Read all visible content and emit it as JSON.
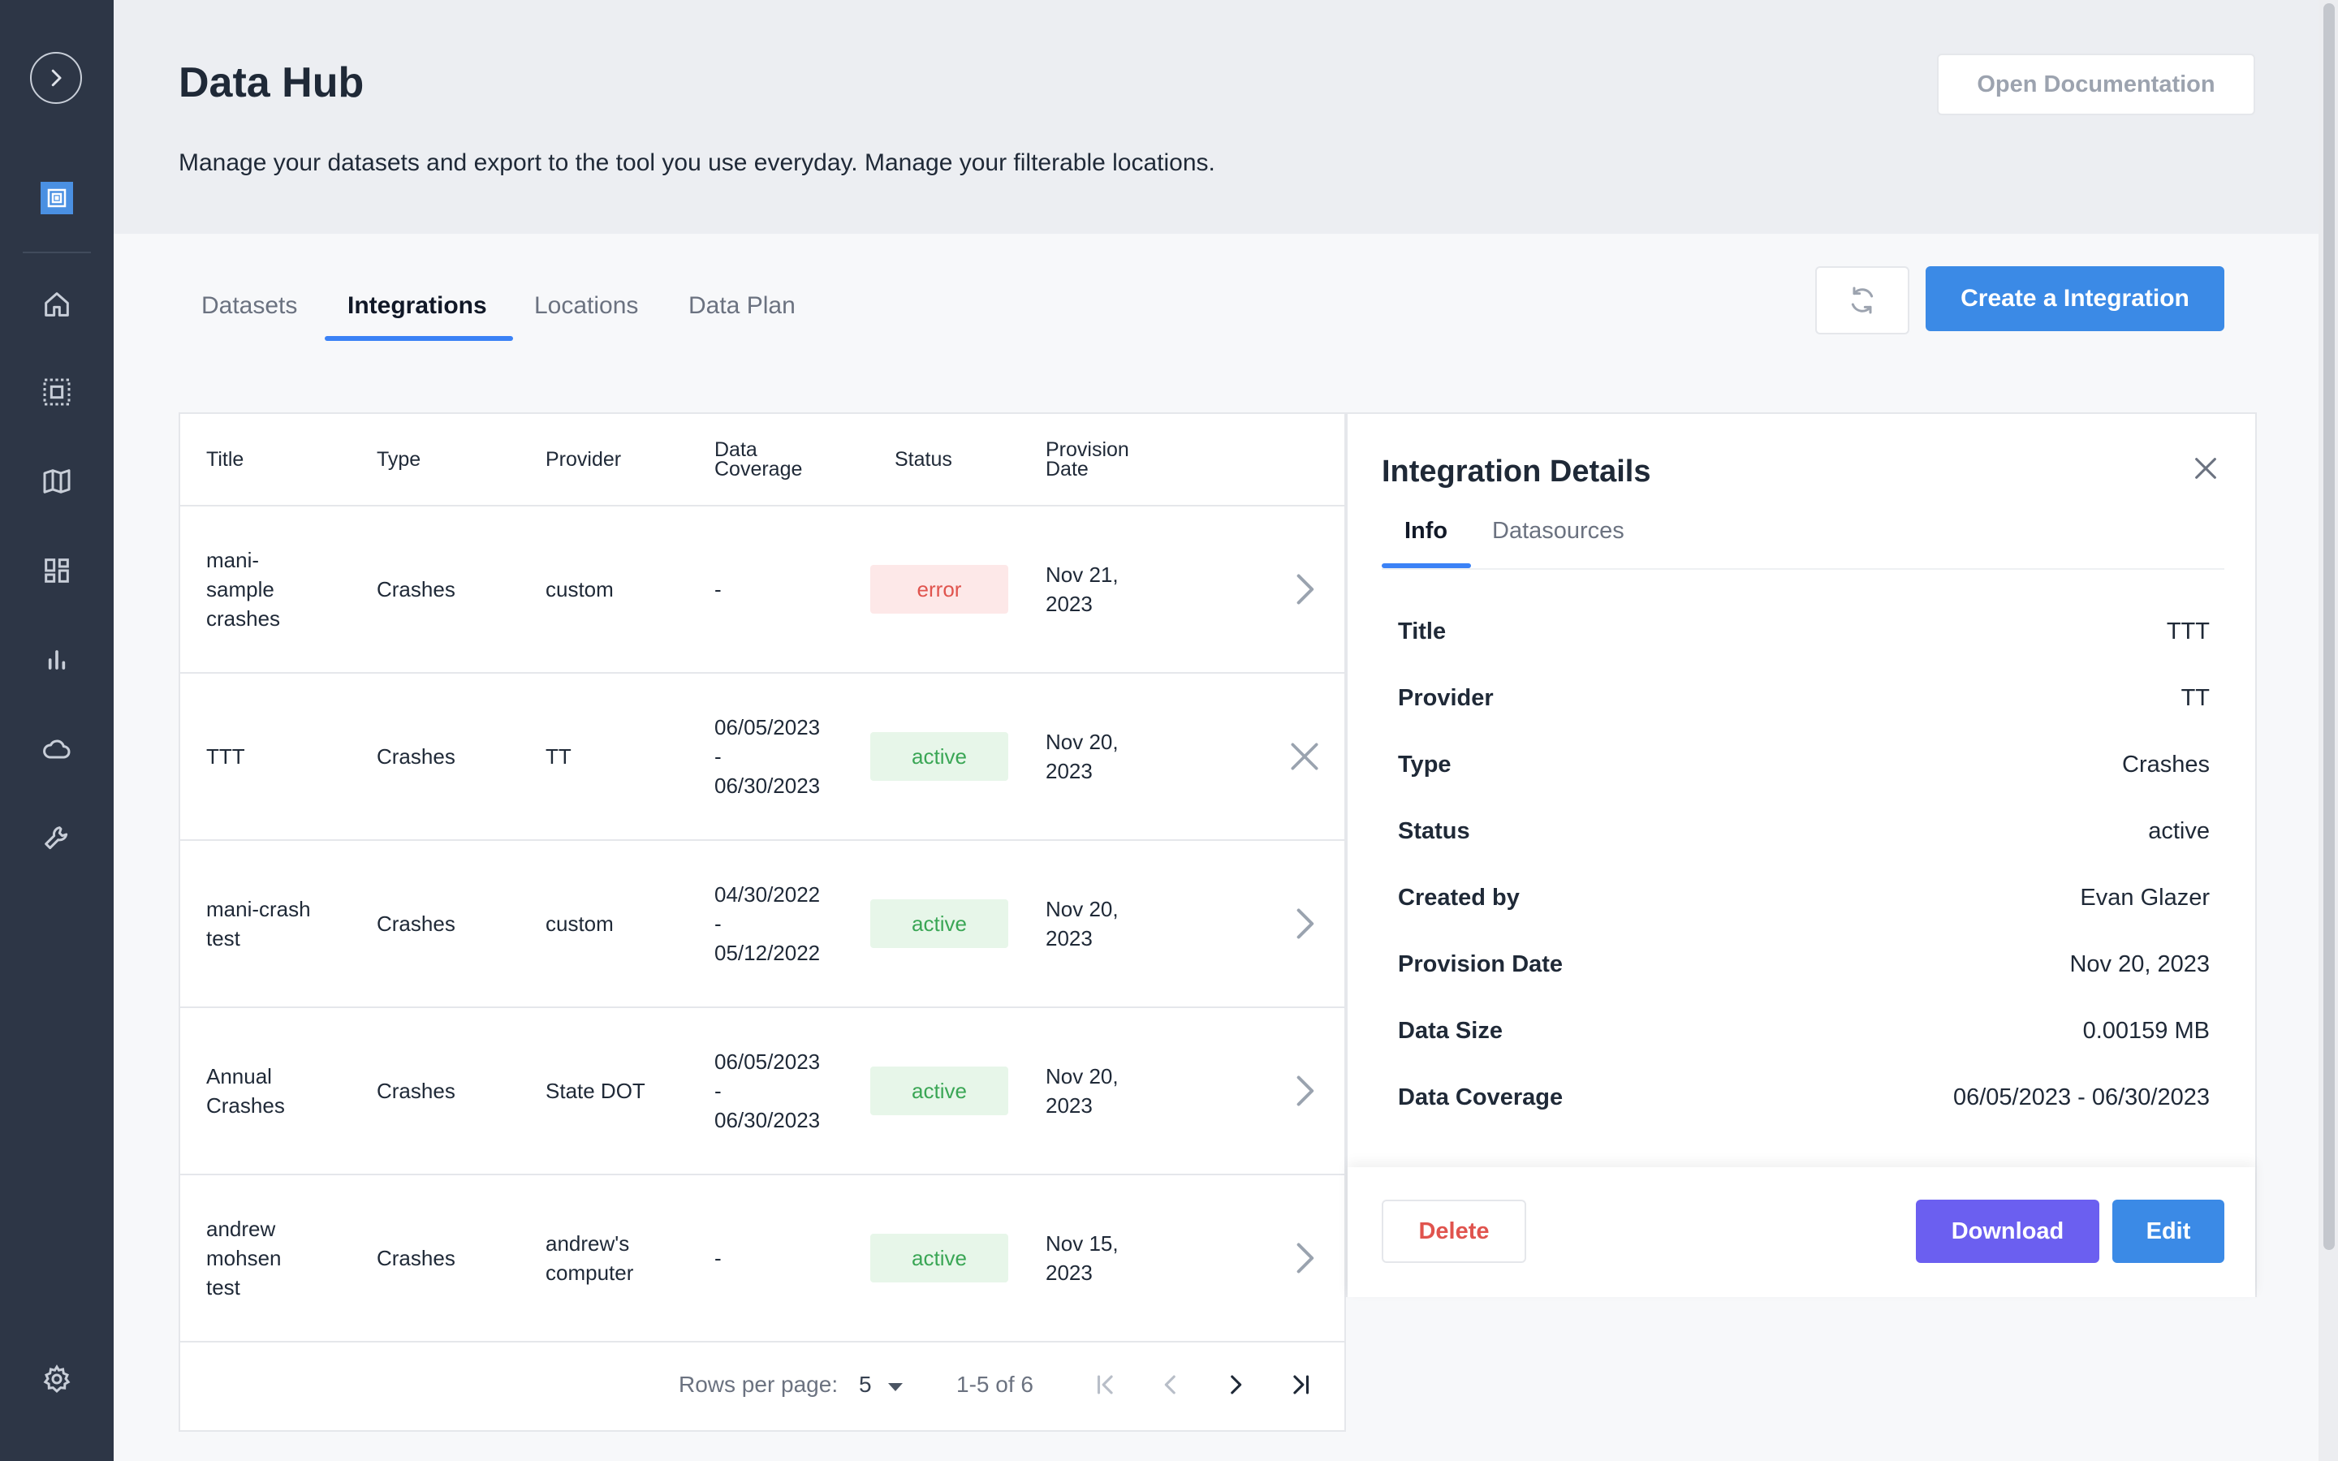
{
  "app": {
    "title": "Data Hub",
    "description": "Manage your datasets and export to the tool you use everyday. Manage your filterable locations.",
    "open_docs_label": "Open Documentation"
  },
  "sidebar": {
    "icons": [
      "chevron-right-icon",
      "logo-icon",
      "home-icon",
      "grid-select-icon",
      "map-icon",
      "dashboard-icon",
      "bar-chart-icon",
      "cloud-icon",
      "wrench-icon",
      "gear-icon"
    ]
  },
  "tabs": [
    {
      "label": "Datasets",
      "active": false
    },
    {
      "label": "Integrations",
      "active": true
    },
    {
      "label": "Locations",
      "active": false
    },
    {
      "label": "Data Plan",
      "active": false
    }
  ],
  "actions": {
    "create_label": "Create a Integration"
  },
  "table": {
    "headers": {
      "title": "Title",
      "type": "Type",
      "provider": "Provider",
      "coverage_l1": "Data",
      "coverage_l2": "Coverage",
      "status": "Status",
      "provision_l1": "Provision",
      "provision_l2": "Date"
    },
    "rows": [
      {
        "title": [
          "mani-",
          "sample",
          "crashes"
        ],
        "type": "Crashes",
        "provider": [
          "custom"
        ],
        "coverage": [
          "-"
        ],
        "status": "error",
        "date": [
          "Nov 21,",
          "2023"
        ],
        "action": "chevron"
      },
      {
        "title": [
          "TTT"
        ],
        "type": "Crashes",
        "provider": [
          "TT"
        ],
        "coverage": [
          "06/05/2023",
          "-",
          "06/30/2023"
        ],
        "status": "active",
        "date": [
          "Nov 20,",
          "2023"
        ],
        "action": "close"
      },
      {
        "title": [
          "mani-crash",
          "test"
        ],
        "type": "Crashes",
        "provider": [
          "custom"
        ],
        "coverage": [
          "04/30/2022",
          "-",
          "05/12/2022"
        ],
        "status": "active",
        "date": [
          "Nov 20,",
          "2023"
        ],
        "action": "chevron"
      },
      {
        "title": [
          "Annual",
          "Crashes"
        ],
        "type": "Crashes",
        "provider": [
          "State DOT"
        ],
        "coverage": [
          "06/05/2023",
          "-",
          "06/30/2023"
        ],
        "status": "active",
        "date": [
          "Nov 20,",
          "2023"
        ],
        "action": "chevron"
      },
      {
        "title": [
          "andrew",
          "mohsen",
          "test"
        ],
        "type": "Crashes",
        "provider": [
          "andrew's",
          "computer"
        ],
        "coverage": [
          "-"
        ],
        "status": "active",
        "date": [
          "Nov 15,",
          "2023"
        ],
        "action": "chevron"
      }
    ],
    "pagination": {
      "rows_per_page_label": "Rows per page:",
      "rows_per_page": "5",
      "range": "1-5 of 6"
    }
  },
  "details": {
    "title": "Integration Details",
    "tabs": [
      {
        "label": "Info",
        "active": true
      },
      {
        "label": "Datasources",
        "active": false
      }
    ],
    "fields": [
      {
        "label": "Title",
        "value": "TTT"
      },
      {
        "label": "Provider",
        "value": "TT"
      },
      {
        "label": "Type",
        "value": "Crashes"
      },
      {
        "label": "Status",
        "value": "active"
      },
      {
        "label": "Created by",
        "value": "Evan Glazer"
      },
      {
        "label": "Provision Date",
        "value": "Nov 20, 2023"
      },
      {
        "label": "Data Size",
        "value": "0.00159 MB"
      },
      {
        "label": "Data Coverage",
        "value": "06/05/2023 - 06/30/2023"
      }
    ],
    "delete_label": "Delete",
    "download_label": "Download",
    "edit_label": "Edit"
  },
  "colors": {
    "sidebar": "#2d3646",
    "accent": "#3b8ae6",
    "download": "#6b5ff0",
    "error": "#e0544e",
    "active": "#3aa655"
  }
}
